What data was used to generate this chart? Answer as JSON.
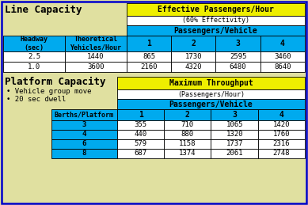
{
  "bg_color": "#e0e0a0",
  "border_color": "#0000cc",
  "cyan_color": "#00aaee",
  "yellow_color": "#eeee00",
  "white_color": "#ffffff",
  "black": "#000000",
  "line_capacity_title": "Line Capacity",
  "effective_header": "Effective Passengers/Hour",
  "effectivity_sub": "(60% Effectivity)",
  "passengers_vehicle_label": "Passengers/Vehicle",
  "headway_label": "Headway\n(sec)",
  "theoretical_label": "Theoretical\nYehicles/Hour",
  "pv_cols": [
    "1",
    "2",
    "3",
    "4"
  ],
  "line_data": [
    [
      "2.5",
      "1440",
      "865",
      "1730",
      "2595",
      "3460"
    ],
    [
      "1.0",
      "3600",
      "2160",
      "4320",
      "6480",
      "8640"
    ]
  ],
  "platform_capacity_title": "Platform Capacity",
  "bullet1": "• Vehicle group move",
  "bullet2": "• 20 sec dwell",
  "max_throughput_header": "Maximum Throughput",
  "max_throughput_sub": "(Passengers/Hour)",
  "berths_label": "Berths/Platform",
  "platform_data": [
    [
      "3",
      "355",
      "710",
      "1065",
      "1420"
    ],
    [
      "4",
      "440",
      "880",
      "1320",
      "1760"
    ],
    [
      "6",
      "579",
      "1158",
      "1737",
      "2316"
    ],
    [
      "8",
      "687",
      "1374",
      "2061",
      "2748"
    ]
  ]
}
